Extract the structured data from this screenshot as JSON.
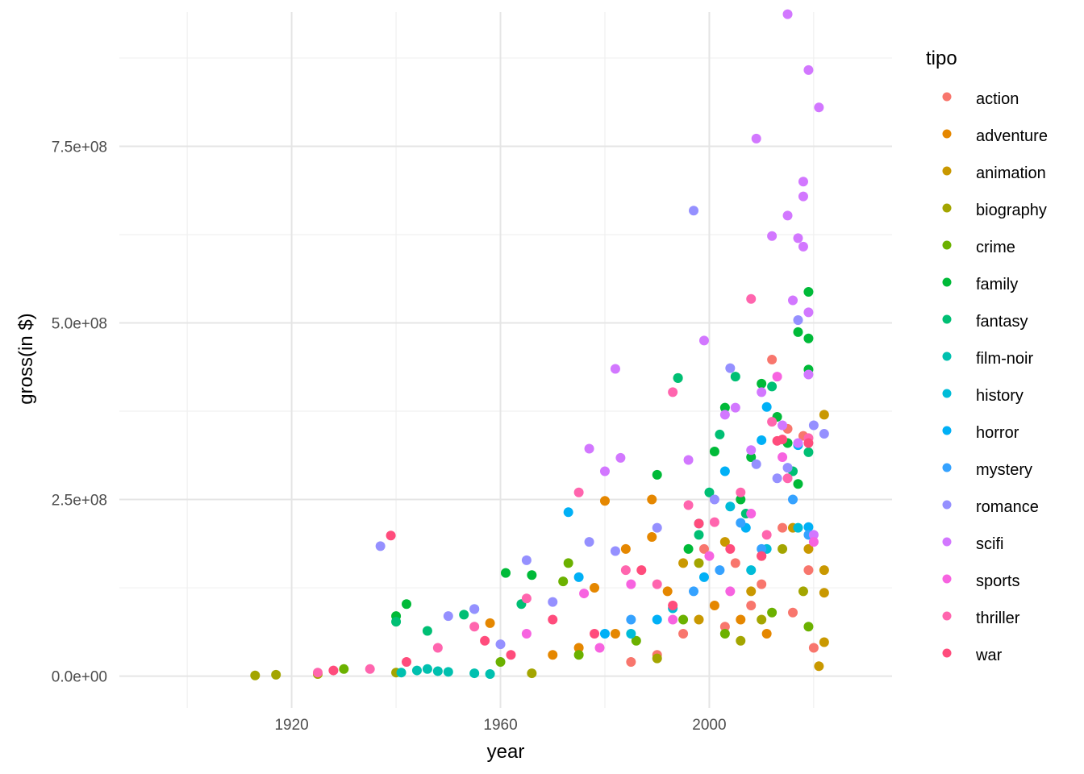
{
  "chart_data": {
    "type": "scatter",
    "title": "",
    "xlabel": "year",
    "ylabel": "gross(in $)",
    "xlim": [
      1887,
      2035
    ],
    "ylim": [
      -45000000,
      940000000
    ],
    "x_ticks": [
      1920,
      1960,
      2000
    ],
    "x_tick_labels": [
      "1920",
      "1960",
      "2000"
    ],
    "y_ticks": [
      0,
      250000000,
      500000000,
      750000000
    ],
    "y_tick_labels": [
      "0.0e+00",
      "2.5e+08",
      "5.0e+08",
      "7.5e+08"
    ],
    "grid": true,
    "legend": {
      "title": "tipo",
      "placement": "right"
    },
    "series": [
      {
        "name": "action",
        "color": "#F8766D",
        "points": [
          [
            2012,
            448000000
          ],
          [
            2015,
            350000000
          ],
          [
            2018,
            340000000
          ],
          [
            1999,
            180000000
          ],
          [
            2005,
            160000000
          ],
          [
            2010,
            130000000
          ],
          [
            2014,
            210000000
          ],
          [
            2016,
            90000000
          ],
          [
            2008,
            100000000
          ],
          [
            2003,
            70000000
          ],
          [
            1995,
            60000000
          ],
          [
            2020,
            40000000
          ],
          [
            1990,
            30000000
          ],
          [
            1985,
            20000000
          ],
          [
            2019,
            150000000
          ]
        ]
      },
      {
        "name": "adventure",
        "color": "#E58700",
        "points": [
          [
            1980,
            248000000
          ],
          [
            1989,
            250000000
          ],
          [
            1984,
            180000000
          ],
          [
            1989,
            197000000
          ],
          [
            1978,
            125000000
          ],
          [
            1958,
            75000000
          ],
          [
            1975,
            40000000
          ],
          [
            1970,
            30000000
          ],
          [
            1982,
            60000000
          ],
          [
            1992,
            120000000
          ],
          [
            2001,
            100000000
          ],
          [
            2006,
            80000000
          ],
          [
            2011,
            60000000
          ]
        ]
      },
      {
        "name": "animation",
        "color": "#C99800",
        "points": [
          [
            2022,
            370000000
          ],
          [
            2022,
            150000000
          ],
          [
            2022,
            118000000
          ],
          [
            2022,
            48000000
          ],
          [
            2021,
            14000000
          ],
          [
            1995,
            160000000
          ],
          [
            2003,
            190000000
          ],
          [
            2010,
            170000000
          ],
          [
            2016,
            210000000
          ],
          [
            2019,
            180000000
          ],
          [
            1998,
            80000000
          ],
          [
            2008,
            120000000
          ]
        ]
      },
      {
        "name": "biography",
        "color": "#A3A500",
        "points": [
          [
            1913,
            1000000
          ],
          [
            1917,
            2000000
          ],
          [
            1925,
            3000000
          ],
          [
            1940,
            5000000
          ],
          [
            1966,
            4000000
          ],
          [
            1998,
            160000000
          ],
          [
            2014,
            180000000
          ],
          [
            2006,
            50000000
          ],
          [
            1990,
            25000000
          ],
          [
            2018,
            120000000
          ],
          [
            2010,
            80000000
          ]
        ]
      },
      {
        "name": "crime",
        "color": "#6BB100",
        "points": [
          [
            1972,
            134000000
          ],
          [
            1973,
            160000000
          ],
          [
            1930,
            10000000
          ],
          [
            1960,
            20000000
          ],
          [
            1975,
            30000000
          ],
          [
            1986,
            50000000
          ],
          [
            1995,
            80000000
          ],
          [
            2003,
            60000000
          ],
          [
            2012,
            90000000
          ],
          [
            2019,
            70000000
          ]
        ]
      },
      {
        "name": "family",
        "color": "#00BA38",
        "points": [
          [
            2019,
            544000000
          ],
          [
            2017,
            487000000
          ],
          [
            2019,
            478000000
          ],
          [
            2019,
            434000000
          ],
          [
            1994,
            422000000
          ],
          [
            2010,
            414000000
          ],
          [
            2003,
            380000000
          ],
          [
            2013,
            367000000
          ],
          [
            1990,
            285000000
          ],
          [
            2017,
            272000000
          ],
          [
            1942,
            102000000
          ],
          [
            1940,
            85000000
          ],
          [
            1961,
            146000000
          ],
          [
            1966,
            143000000
          ],
          [
            2001,
            318000000
          ],
          [
            2008,
            310000000
          ],
          [
            1996,
            180000000
          ],
          [
            2006,
            250000000
          ],
          [
            2015,
            330000000
          ]
        ]
      },
      {
        "name": "fantasy",
        "color": "#00BF74",
        "points": [
          [
            1940,
            77000000
          ],
          [
            1946,
            64000000
          ],
          [
            1953,
            87000000
          ],
          [
            1964,
            102000000
          ],
          [
            1994,
            422000000
          ],
          [
            2002,
            342000000
          ],
          [
            2005,
            424000000
          ],
          [
            2012,
            410000000
          ],
          [
            2019,
            317000000
          ],
          [
            2000,
            260000000
          ],
          [
            2007,
            230000000
          ],
          [
            1998,
            200000000
          ],
          [
            2016,
            290000000
          ]
        ]
      },
      {
        "name": "film-noir",
        "color": "#00C0AF",
        "points": [
          [
            1941,
            5000000
          ],
          [
            1944,
            8000000
          ],
          [
            1946,
            10000000
          ],
          [
            1948,
            7000000
          ],
          [
            1950,
            6000000
          ],
          [
            1955,
            4000000
          ],
          [
            1958,
            3000000
          ]
        ]
      },
      {
        "name": "history",
        "color": "#00BCD8",
        "points": [
          [
            1955,
            95000000
          ],
          [
            1998,
            216000000
          ],
          [
            2004,
            240000000
          ],
          [
            2011,
            180000000
          ],
          [
            2017,
            210000000
          ],
          [
            1985,
            60000000
          ],
          [
            1993,
            96000000
          ],
          [
            2008,
            150000000
          ]
        ]
      },
      {
        "name": "horror",
        "color": "#00B0F6",
        "points": [
          [
            1973,
            232000000
          ],
          [
            1975,
            140000000
          ],
          [
            2011,
            381000000
          ],
          [
            2010,
            334000000
          ],
          [
            2017,
            327000000
          ],
          [
            2003,
            290000000
          ],
          [
            1999,
            140000000
          ],
          [
            2007,
            210000000
          ],
          [
            2019,
            211000000
          ],
          [
            1990,
            80000000
          ],
          [
            1980,
            60000000
          ]
        ]
      },
      {
        "name": "mystery",
        "color": "#35A2FF",
        "points": [
          [
            2006,
            217000000
          ],
          [
            2010,
            180000000
          ],
          [
            2016,
            250000000
          ],
          [
            2002,
            150000000
          ],
          [
            1997,
            120000000
          ],
          [
            1985,
            80000000
          ],
          [
            2019,
            200000000
          ]
        ]
      },
      {
        "name": "romance",
        "color": "#9590FF",
        "points": [
          [
            1937,
            184000000
          ],
          [
            1965,
            164000000
          ],
          [
            1977,
            190000000
          ],
          [
            1982,
            177000000
          ],
          [
            1997,
            659000000
          ],
          [
            2004,
            436000000
          ],
          [
            2015,
            295000000
          ],
          [
            2017,
            504000000
          ],
          [
            2020,
            355000000
          ],
          [
            2022,
            343000000
          ],
          [
            1950,
            85000000
          ],
          [
            1955,
            95000000
          ],
          [
            1970,
            105000000
          ],
          [
            1990,
            210000000
          ],
          [
            2001,
            250000000
          ],
          [
            2009,
            300000000
          ],
          [
            2013,
            280000000
          ],
          [
            1960,
            45000000
          ]
        ]
      },
      {
        "name": "scifi",
        "color": "#D277FF",
        "points": [
          [
            2015,
            937000000
          ],
          [
            2019,
            858000000
          ],
          [
            2021,
            805000000
          ],
          [
            2009,
            761000000
          ],
          [
            2018,
            700000000
          ],
          [
            2018,
            679000000
          ],
          [
            2015,
            652000000
          ],
          [
            2017,
            620000000
          ],
          [
            2012,
            623000000
          ],
          [
            2018,
            608000000
          ],
          [
            2016,
            532000000
          ],
          [
            2019,
            515000000
          ],
          [
            1999,
            475000000
          ],
          [
            1982,
            435000000
          ],
          [
            2019,
            427000000
          ],
          [
            2010,
            402000000
          ],
          [
            2014,
            355000000
          ],
          [
            2008,
            320000000
          ],
          [
            1983,
            309000000
          ],
          [
            1977,
            322000000
          ],
          [
            1980,
            290000000
          ],
          [
            2005,
            380000000
          ],
          [
            2017,
            330000000
          ],
          [
            2020,
            200000000
          ],
          [
            1996,
            306000000
          ],
          [
            2003,
            370000000
          ]
        ]
      },
      {
        "name": "sports",
        "color": "#F763E0",
        "points": [
          [
            2013,
            424000000
          ],
          [
            1976,
            117000000
          ],
          [
            1985,
            130000000
          ],
          [
            1993,
            80000000
          ],
          [
            2000,
            170000000
          ],
          [
            2008,
            230000000
          ],
          [
            2014,
            310000000
          ],
          [
            2020,
            190000000
          ],
          [
            1965,
            60000000
          ],
          [
            1979,
            40000000
          ],
          [
            2004,
            120000000
          ]
        ]
      },
      {
        "name": "thriller",
        "color": "#FF65AE",
        "points": [
          [
            2008,
            534000000
          ],
          [
            1993,
            402000000
          ],
          [
            2012,
            360000000
          ],
          [
            1975,
            260000000
          ],
          [
            1996,
            242000000
          ],
          [
            2019,
            337000000
          ],
          [
            2001,
            218000000
          ],
          [
            2006,
            260000000
          ],
          [
            1984,
            150000000
          ],
          [
            1990,
            130000000
          ],
          [
            1965,
            110000000
          ],
          [
            1955,
            70000000
          ],
          [
            1948,
            40000000
          ],
          [
            1935,
            10000000
          ],
          [
            1925,
            5000000
          ],
          [
            2015,
            280000000
          ],
          [
            2011,
            200000000
          ]
        ]
      },
      {
        "name": "war",
        "color": "#FF4C7C",
        "points": [
          [
            1939,
            199000000
          ],
          [
            2014,
            335000000
          ],
          [
            2013,
            333000000
          ],
          [
            2019,
            330000000
          ],
          [
            1998,
            216000000
          ],
          [
            1987,
            150000000
          ],
          [
            1970,
            80000000
          ],
          [
            1957,
            50000000
          ],
          [
            1942,
            20000000
          ],
          [
            2004,
            180000000
          ],
          [
            2010,
            170000000
          ],
          [
            1993,
            100000000
          ],
          [
            1978,
            60000000
          ],
          [
            1962,
            30000000
          ],
          [
            1928,
            8000000
          ]
        ]
      }
    ]
  }
}
